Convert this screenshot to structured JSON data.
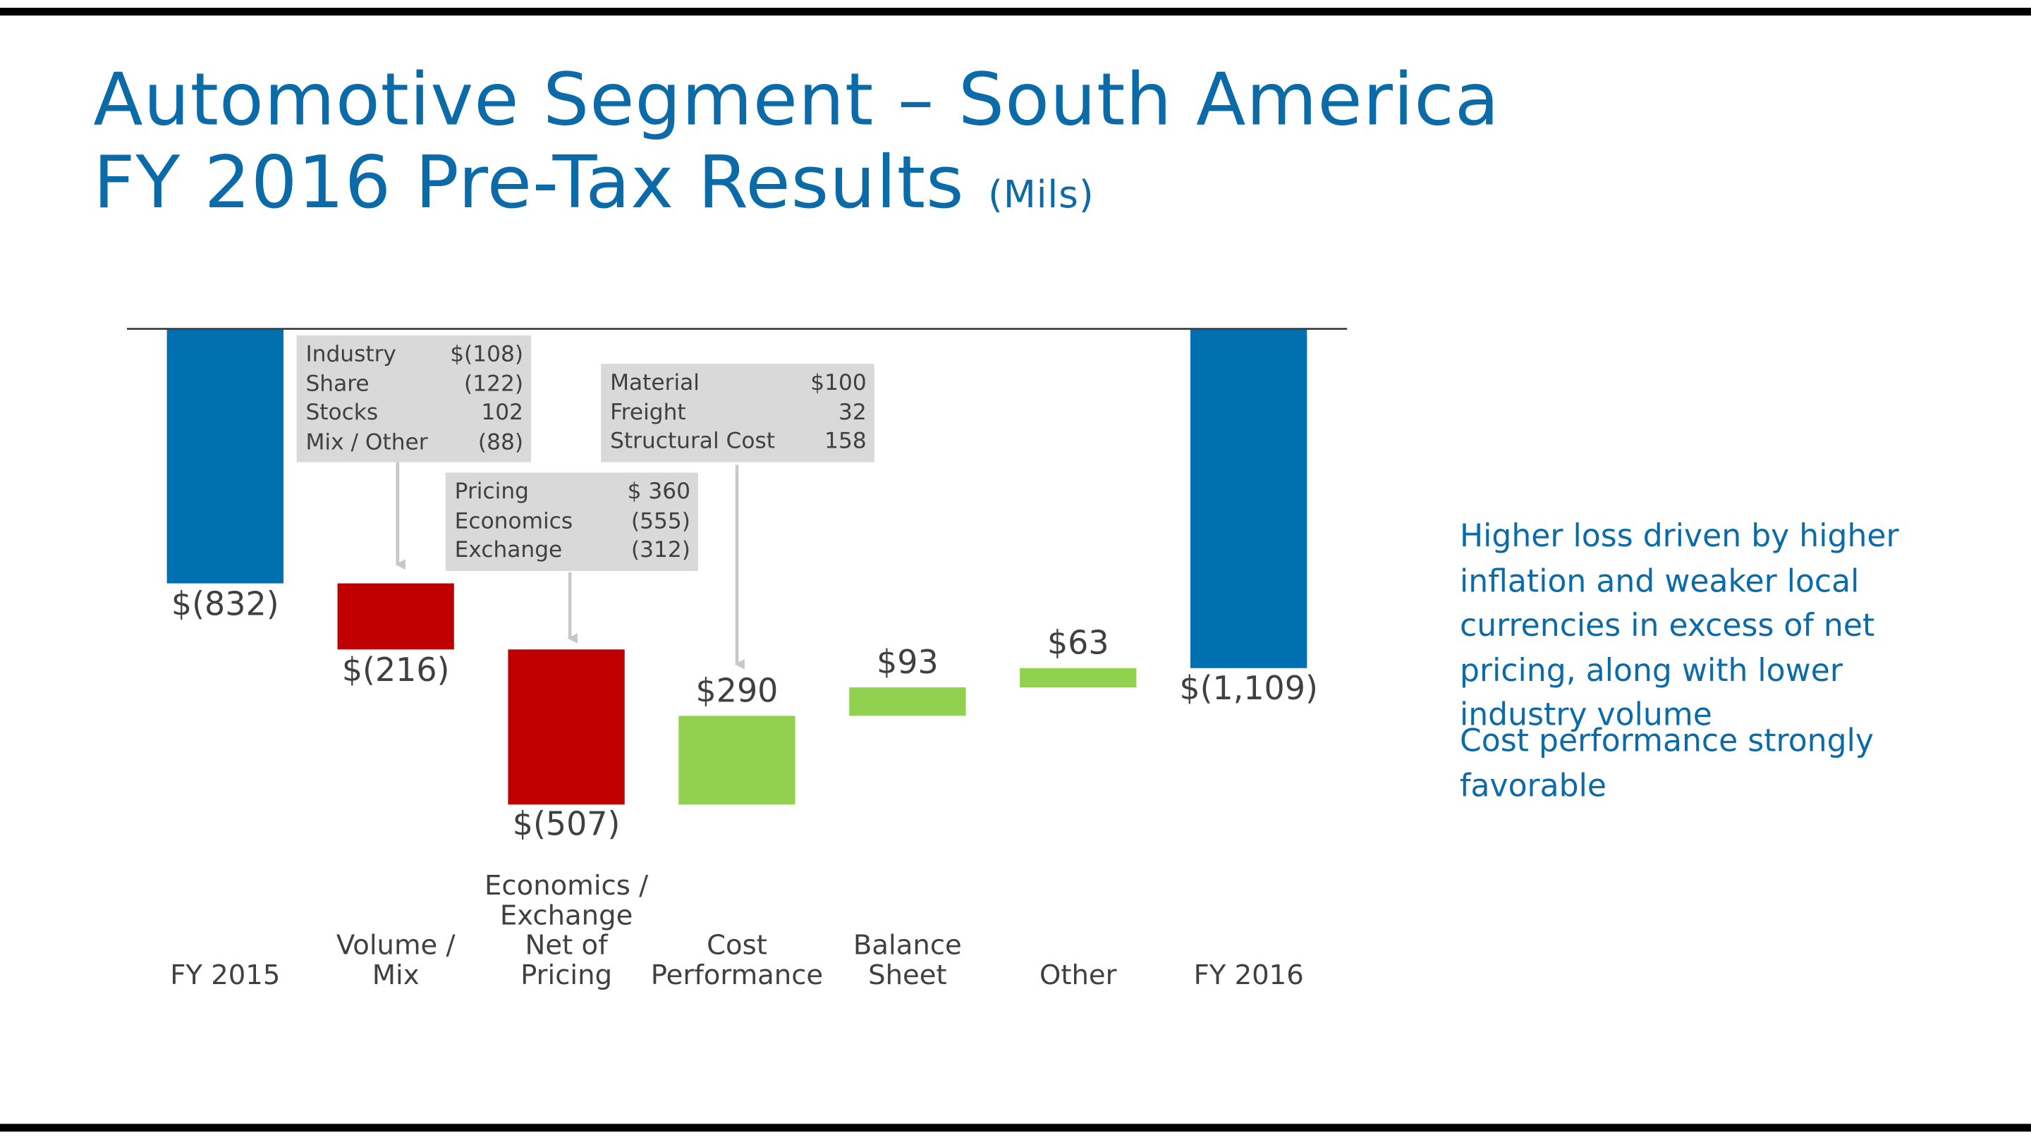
{
  "chart_data": {
    "type": "waterfall",
    "title": "Automotive Segment – South America",
    "subtitle": "FY 2016 Pre-Tax Results",
    "unit_label": "(Mils)",
    "categories": [
      "FY 2015",
      "Volume /\nMix",
      "Economics /\nExchange\nNet of Pricing",
      "Cost\nPerformance",
      "Balance\nSheet",
      "Other",
      "FY 2016"
    ],
    "values": [
      -832,
      -216,
      -507,
      290,
      93,
      63,
      -1109
    ],
    "value_labels": [
      "$(832)",
      "$(216)",
      "$(507)",
      "$290",
      "$93",
      "$63",
      "$(1,109)"
    ],
    "is_total": [
      true,
      false,
      false,
      false,
      false,
      false,
      true
    ],
    "colors": {
      "total": "#0070b0",
      "negative": "#c00000",
      "positive": "#92d050"
    },
    "ylim": [
      -1600,
      0
    ],
    "callouts": [
      {
        "rows": [
          [
            "Industry",
            "$(108)"
          ],
          [
            "Share",
            "(122)"
          ],
          [
            "Stocks",
            "102"
          ],
          [
            "Mix / Other",
            "(88)"
          ]
        ]
      },
      {
        "rows": [
          [
            "Pricing",
            "$ 360"
          ],
          [
            "Economics",
            "(555)"
          ],
          [
            "Exchange",
            "(312)"
          ]
        ]
      },
      {
        "rows": [
          [
            "Material",
            "$100"
          ],
          [
            "Freight",
            "32"
          ],
          [
            "Structural Cost",
            "158"
          ]
        ]
      }
    ],
    "notes": [
      "Higher loss driven by higher inflation and weaker local currencies in excess of net pricing, along with lower industry volume",
      "Cost performance strongly favorable"
    ]
  }
}
